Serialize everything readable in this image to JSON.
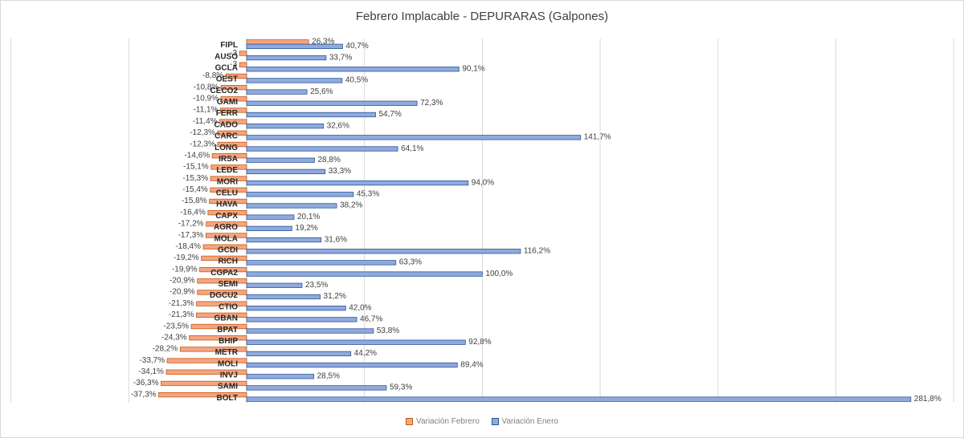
{
  "chart_data": {
    "type": "bar",
    "orientation": "horizontal",
    "title": "Febrero  Implacable  - DEPURARAS (Galpones)",
    "categories": [
      "FIPL",
      "AUSO",
      "GCLA",
      "OEST",
      "CECO2",
      "GAMI",
      "FERR",
      "CADO",
      "CARC",
      "LONG",
      "IRSA",
      "LEDE",
      "MORI",
      "CELU",
      "HAVA",
      "CAPX",
      "AGRO",
      "MOLA",
      "GCDI",
      "RICH",
      "CGPA2",
      "SEMI",
      "DGCU2",
      "CTIO",
      "GBAN",
      "BPAT",
      "BHIP",
      "METR",
      "MOLI",
      "INVJ",
      "SAMI",
      "BOLT"
    ],
    "series": [
      {
        "name": "Variación Febrero",
        "color": "#f4a582",
        "values": [
          26.3,
          -3,
          -3,
          -8.8,
          -10.8,
          -10.9,
          -11.1,
          -11.4,
          -12.3,
          -12.3,
          -14.6,
          -15.1,
          -15.3,
          -15.4,
          -15.8,
          -16.4,
          -17.2,
          -17.3,
          -18.4,
          -19.2,
          -19.9,
          -20.9,
          -20.9,
          -21.3,
          -21.3,
          -23.5,
          -24.3,
          -28.2,
          -33.7,
          -34.1,
          -36.3,
          -37.3
        ],
        "labels": [
          "26,3%",
          "-3",
          "-3",
          "-8,8%",
          "-10,8%",
          "-10,9%",
          "-11,1%",
          "-11,4%",
          "-12,3%",
          "-12,3%",
          "-14,6%",
          "-15,1%",
          "-15,3%",
          "-15,4%",
          "-15,8%",
          "-16,4%",
          "-17,2%",
          "-17,3%",
          "-18,4%",
          "-19,2%",
          "-19,9%",
          "-20,9%",
          "-20,9%",
          "-21,3%",
          "-21,3%",
          "-23,5%",
          "-24,3%",
          "-28,2%",
          "-33,7%",
          "-34,1%",
          "-36,3%",
          "-37,3%"
        ]
      },
      {
        "name": "Variación Enero",
        "color": "#8faadc",
        "values": [
          40.7,
          33.7,
          90.1,
          40.5,
          25.6,
          72.3,
          54.7,
          32.6,
          141.7,
          64.1,
          28.8,
          33.3,
          94.0,
          45.3,
          38.2,
          20.1,
          19.2,
          31.6,
          116.2,
          63.3,
          100.0,
          23.5,
          31.2,
          42.0,
          46.7,
          53.8,
          92.8,
          44.2,
          89.4,
          28.5,
          59.3,
          281.8
        ],
        "labels": [
          "40,7%",
          "33,7%",
          "90,1%",
          "40,5%",
          "25,6%",
          "72,3%",
          "54,7%",
          "32,6%",
          "141,7%",
          "64,1%",
          "28,8%",
          "33,3%",
          "94,0%",
          "45,3%",
          "38,2%",
          "20,1%",
          "19,2%",
          "31,6%",
          "116,2%",
          "63,3%",
          "100,0%",
          "23,5%",
          "31,2%",
          "42,0%",
          "46,7%",
          "53,8%",
          "92,8%",
          "44,2%",
          "89,4%",
          "28,5%",
          "59,3%",
          "281,8%"
        ]
      }
    ],
    "xlim": [
      -100,
      300
    ],
    "grid": true,
    "legend_position": "bottom"
  }
}
